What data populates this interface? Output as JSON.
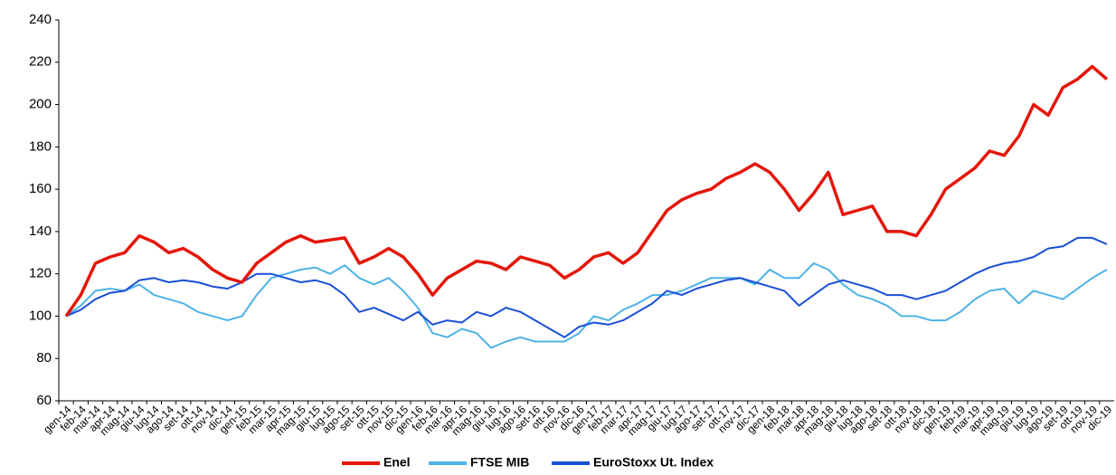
{
  "chart_data": {
    "type": "line",
    "categories": [
      "gen-14",
      "feb-14",
      "mar-14",
      "apr-14",
      "mag-14",
      "giu-14",
      "lug-14",
      "ago-14",
      "set-14",
      "ott-14",
      "nov-14",
      "dic-14",
      "gen-15",
      "feb-15",
      "mar-15",
      "apr-15",
      "mag-15",
      "giu-15",
      "lug-15",
      "ago-15",
      "set-15",
      "ott-15",
      "nov-15",
      "dic-15",
      "gen-16",
      "feb-16",
      "mar-16",
      "apr-16",
      "mag-16",
      "giu-16",
      "lug-16",
      "ago-16",
      "set-16",
      "ott-16",
      "nov-16",
      "dic-16",
      "gen-17",
      "feb-17",
      "mar-17",
      "apr-17",
      "mag-17",
      "giu-17",
      "lug-17",
      "ago-17",
      "set-17",
      "ott-17",
      "nov-17",
      "dic-17",
      "gen-18",
      "feb-18",
      "mar-18",
      "apr-18",
      "mag-18",
      "giu-18",
      "lug-18",
      "ago-18",
      "set-18",
      "ott-18",
      "nov-18",
      "dic-18",
      "gen-19",
      "feb-19",
      "mar-19",
      "apr-19",
      "mag-19",
      "giu-19",
      "lug-19",
      "ago-19",
      "set-19",
      "ott-19",
      "nov-19",
      "dic-19"
    ],
    "series": [
      {
        "name": "Enel",
        "color": "#e3170a",
        "values": [
          100,
          110,
          125,
          128,
          130,
          138,
          135,
          130,
          132,
          128,
          122,
          118,
          116,
          125,
          130,
          135,
          138,
          135,
          136,
          137,
          125,
          128,
          132,
          128,
          120,
          110,
          118,
          122,
          126,
          125,
          122,
          128,
          126,
          124,
          118,
          122,
          128,
          130,
          125,
          130,
          140,
          150,
          155,
          158,
          160,
          165,
          168,
          172,
          168,
          160,
          150,
          158,
          168,
          148,
          150,
          152,
          140,
          140,
          138,
          148,
          160,
          165,
          170,
          178,
          176,
          185,
          200,
          195,
          208,
          212,
          218,
          212
        ]
      },
      {
        "name": "FTSE MIB",
        "color": "#4db3e6",
        "values": [
          100,
          105,
          112,
          113,
          112,
          115,
          110,
          108,
          106,
          102,
          100,
          98,
          100,
          110,
          118,
          120,
          122,
          123,
          120,
          124,
          118,
          115,
          118,
          112,
          104,
          92,
          90,
          94,
          92,
          85,
          88,
          90,
          88,
          88,
          88,
          92,
          100,
          98,
          103,
          106,
          110,
          110,
          112,
          115,
          118,
          118,
          118,
          115,
          122,
          118,
          118,
          125,
          122,
          115,
          110,
          108,
          105,
          100,
          100,
          98,
          98,
          102,
          108,
          112,
          113,
          106,
          112,
          110,
          108,
          113,
          118,
          122
        ]
      },
      {
        "name": "EuroStoxx Ut. Index",
        "color": "#1a4fd6",
        "values": [
          100,
          103,
          108,
          111,
          112,
          117,
          118,
          116,
          117,
          116,
          114,
          113,
          116,
          120,
          120,
          118,
          116,
          117,
          115,
          110,
          102,
          104,
          101,
          98,
          102,
          96,
          98,
          97,
          102,
          100,
          104,
          102,
          98,
          94,
          90,
          95,
          97,
          96,
          98,
          102,
          106,
          112,
          110,
          113,
          115,
          117,
          118,
          116,
          114,
          112,
          105,
          110,
          115,
          117,
          115,
          113,
          110,
          110,
          108,
          110,
          112,
          116,
          120,
          123,
          125,
          126,
          128,
          132,
          133,
          137,
          137,
          134
        ]
      }
    ],
    "ylim": [
      60,
      240
    ],
    "yticks": [
      60,
      80,
      100,
      120,
      140,
      160,
      180,
      200,
      220,
      240
    ],
    "legend": "bottom",
    "grid": false
  }
}
